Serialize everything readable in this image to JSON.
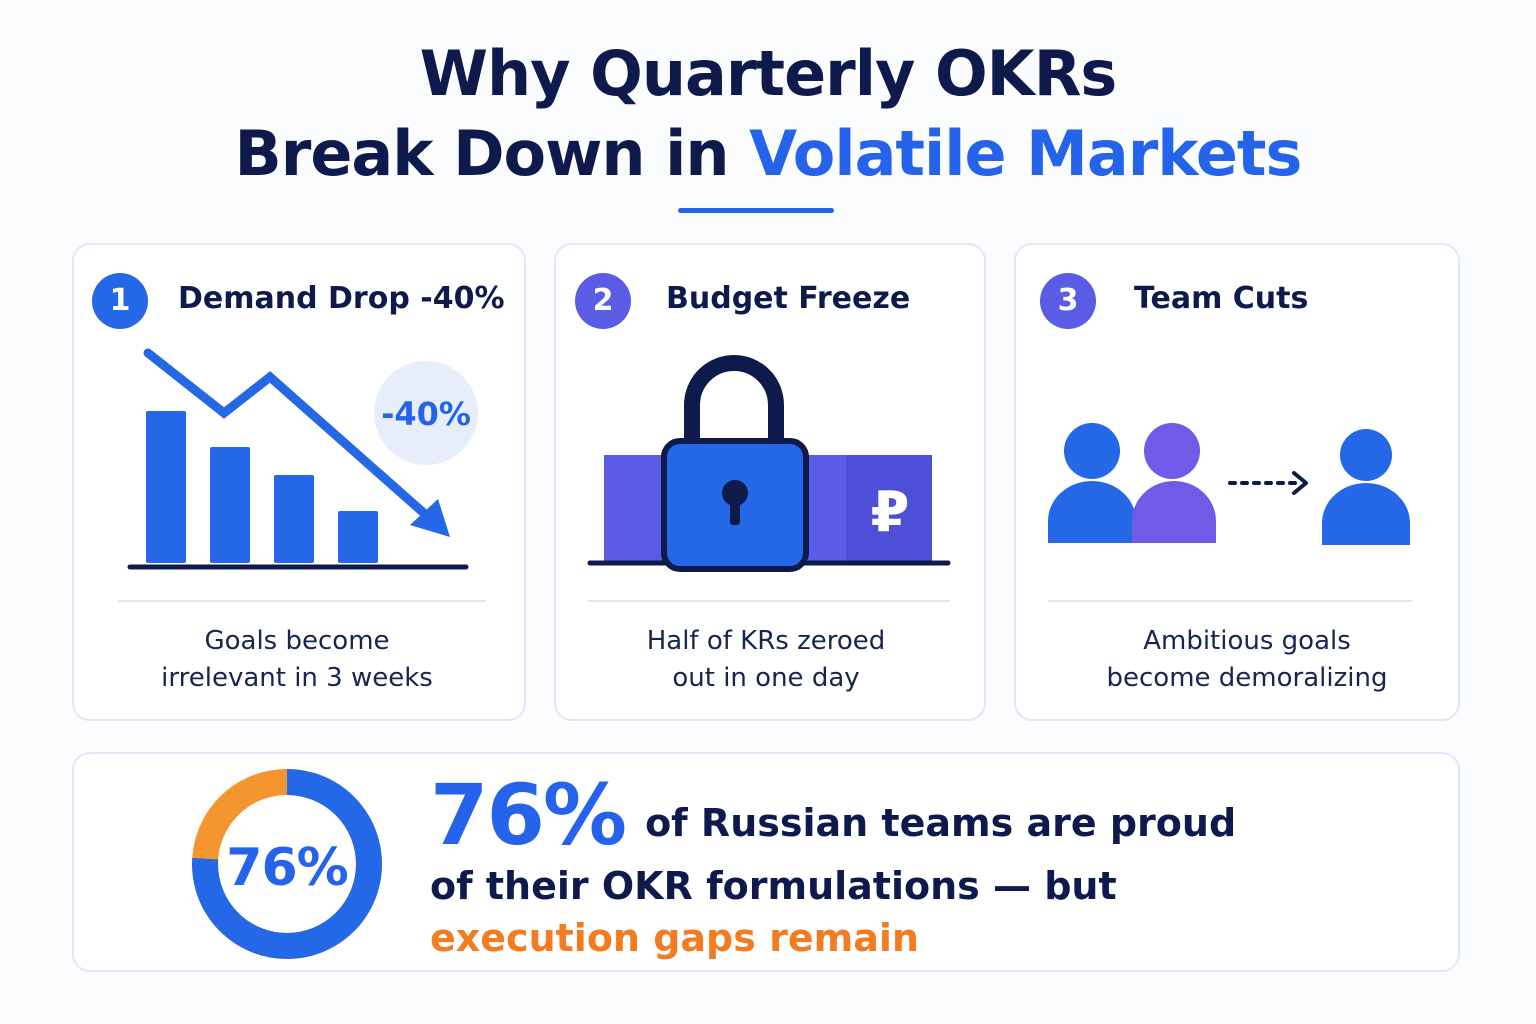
{
  "title": {
    "line1": "Why Quarterly OKRs",
    "line2_plain": "Break Down in ",
    "line2_accent": "Volatile Markets"
  },
  "colors": {
    "navy": "#0d1a4b",
    "blue": "#2563eb",
    "indigo": "#5a5ce6",
    "orange": "#f47c20",
    "card_border": "#e1e7f5"
  },
  "cards": [
    {
      "number": "1",
      "title": "Demand Drop -40%",
      "icon": "declining-bar-chart-icon",
      "badge_text": "-40%",
      "caption_line1": "Goals become",
      "caption_line2": "irrelevant in 3 weeks"
    },
    {
      "number": "2",
      "title": "Budget Freeze",
      "icon": "padlock-icon",
      "currency_symbol": "₽",
      "caption_line1": "Half of KRs zeroed",
      "caption_line2": "out in one day"
    },
    {
      "number": "3",
      "title": "Team Cuts",
      "icon": "team-reduction-icon",
      "caption_line1": "Ambitious goals",
      "caption_line2": "become demoralizing"
    }
  ],
  "stat": {
    "percent": 0.76,
    "donut_label": "76%",
    "big_value": "76%",
    "text_main": "of Russian teams are proud of their OKR formulations — but ",
    "text_highlight": "execution gaps remain"
  }
}
